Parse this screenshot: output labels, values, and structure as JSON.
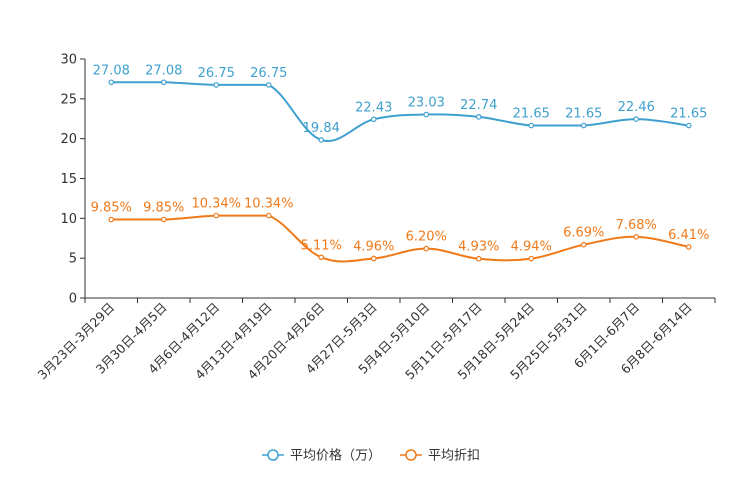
{
  "chart_data": {
    "type": "line",
    "categories": [
      "3月23日-3月29日",
      "3月30日-4月5日",
      "4月6日-4月12日",
      "4月13日-4月19日",
      "4月20日-4月26日",
      "4月27日-5月3日",
      "5月4日-5月10日",
      "5月11日-5月17日",
      "5月18日-5月24日",
      "5月25日-5月31日",
      "6月1日-6月7日",
      "6月8日-6月14日"
    ],
    "ylim": [
      0,
      30
    ],
    "yticks": [
      0,
      5,
      10,
      15,
      20,
      25,
      30
    ],
    "ytick_labels": [
      "0",
      "5",
      "10",
      "15",
      "20",
      "25",
      "30"
    ],
    "series": [
      {
        "name": "平均价格（万）",
        "color": "#3fa0cf",
        "values": [
          27.08,
          27.08,
          26.75,
          26.75,
          19.84,
          22.43,
          23.03,
          22.74,
          21.65,
          21.65,
          22.46,
          21.65
        ],
        "labels": [
          "27.08",
          "27.08",
          "26.75",
          "26.75",
          "19.84",
          "22.43",
          "23.03",
          "22.74",
          "21.65",
          "21.65",
          "22.46",
          "21.65"
        ]
      },
      {
        "name": "平均折扣",
        "color": "#f07a1a",
        "values": [
          9.85,
          9.85,
          10.34,
          10.34,
          5.11,
          4.96,
          6.2,
          4.93,
          4.94,
          6.69,
          7.68,
          6.41
        ],
        "labels": [
          "9.85%",
          "9.85%",
          "10.34%",
          "10.34%",
          "5.11%",
          "4.96%",
          "6.20%",
          "4.93%",
          "4.94%",
          "6.69%",
          "7.68%",
          "6.41%"
        ]
      }
    ]
  }
}
